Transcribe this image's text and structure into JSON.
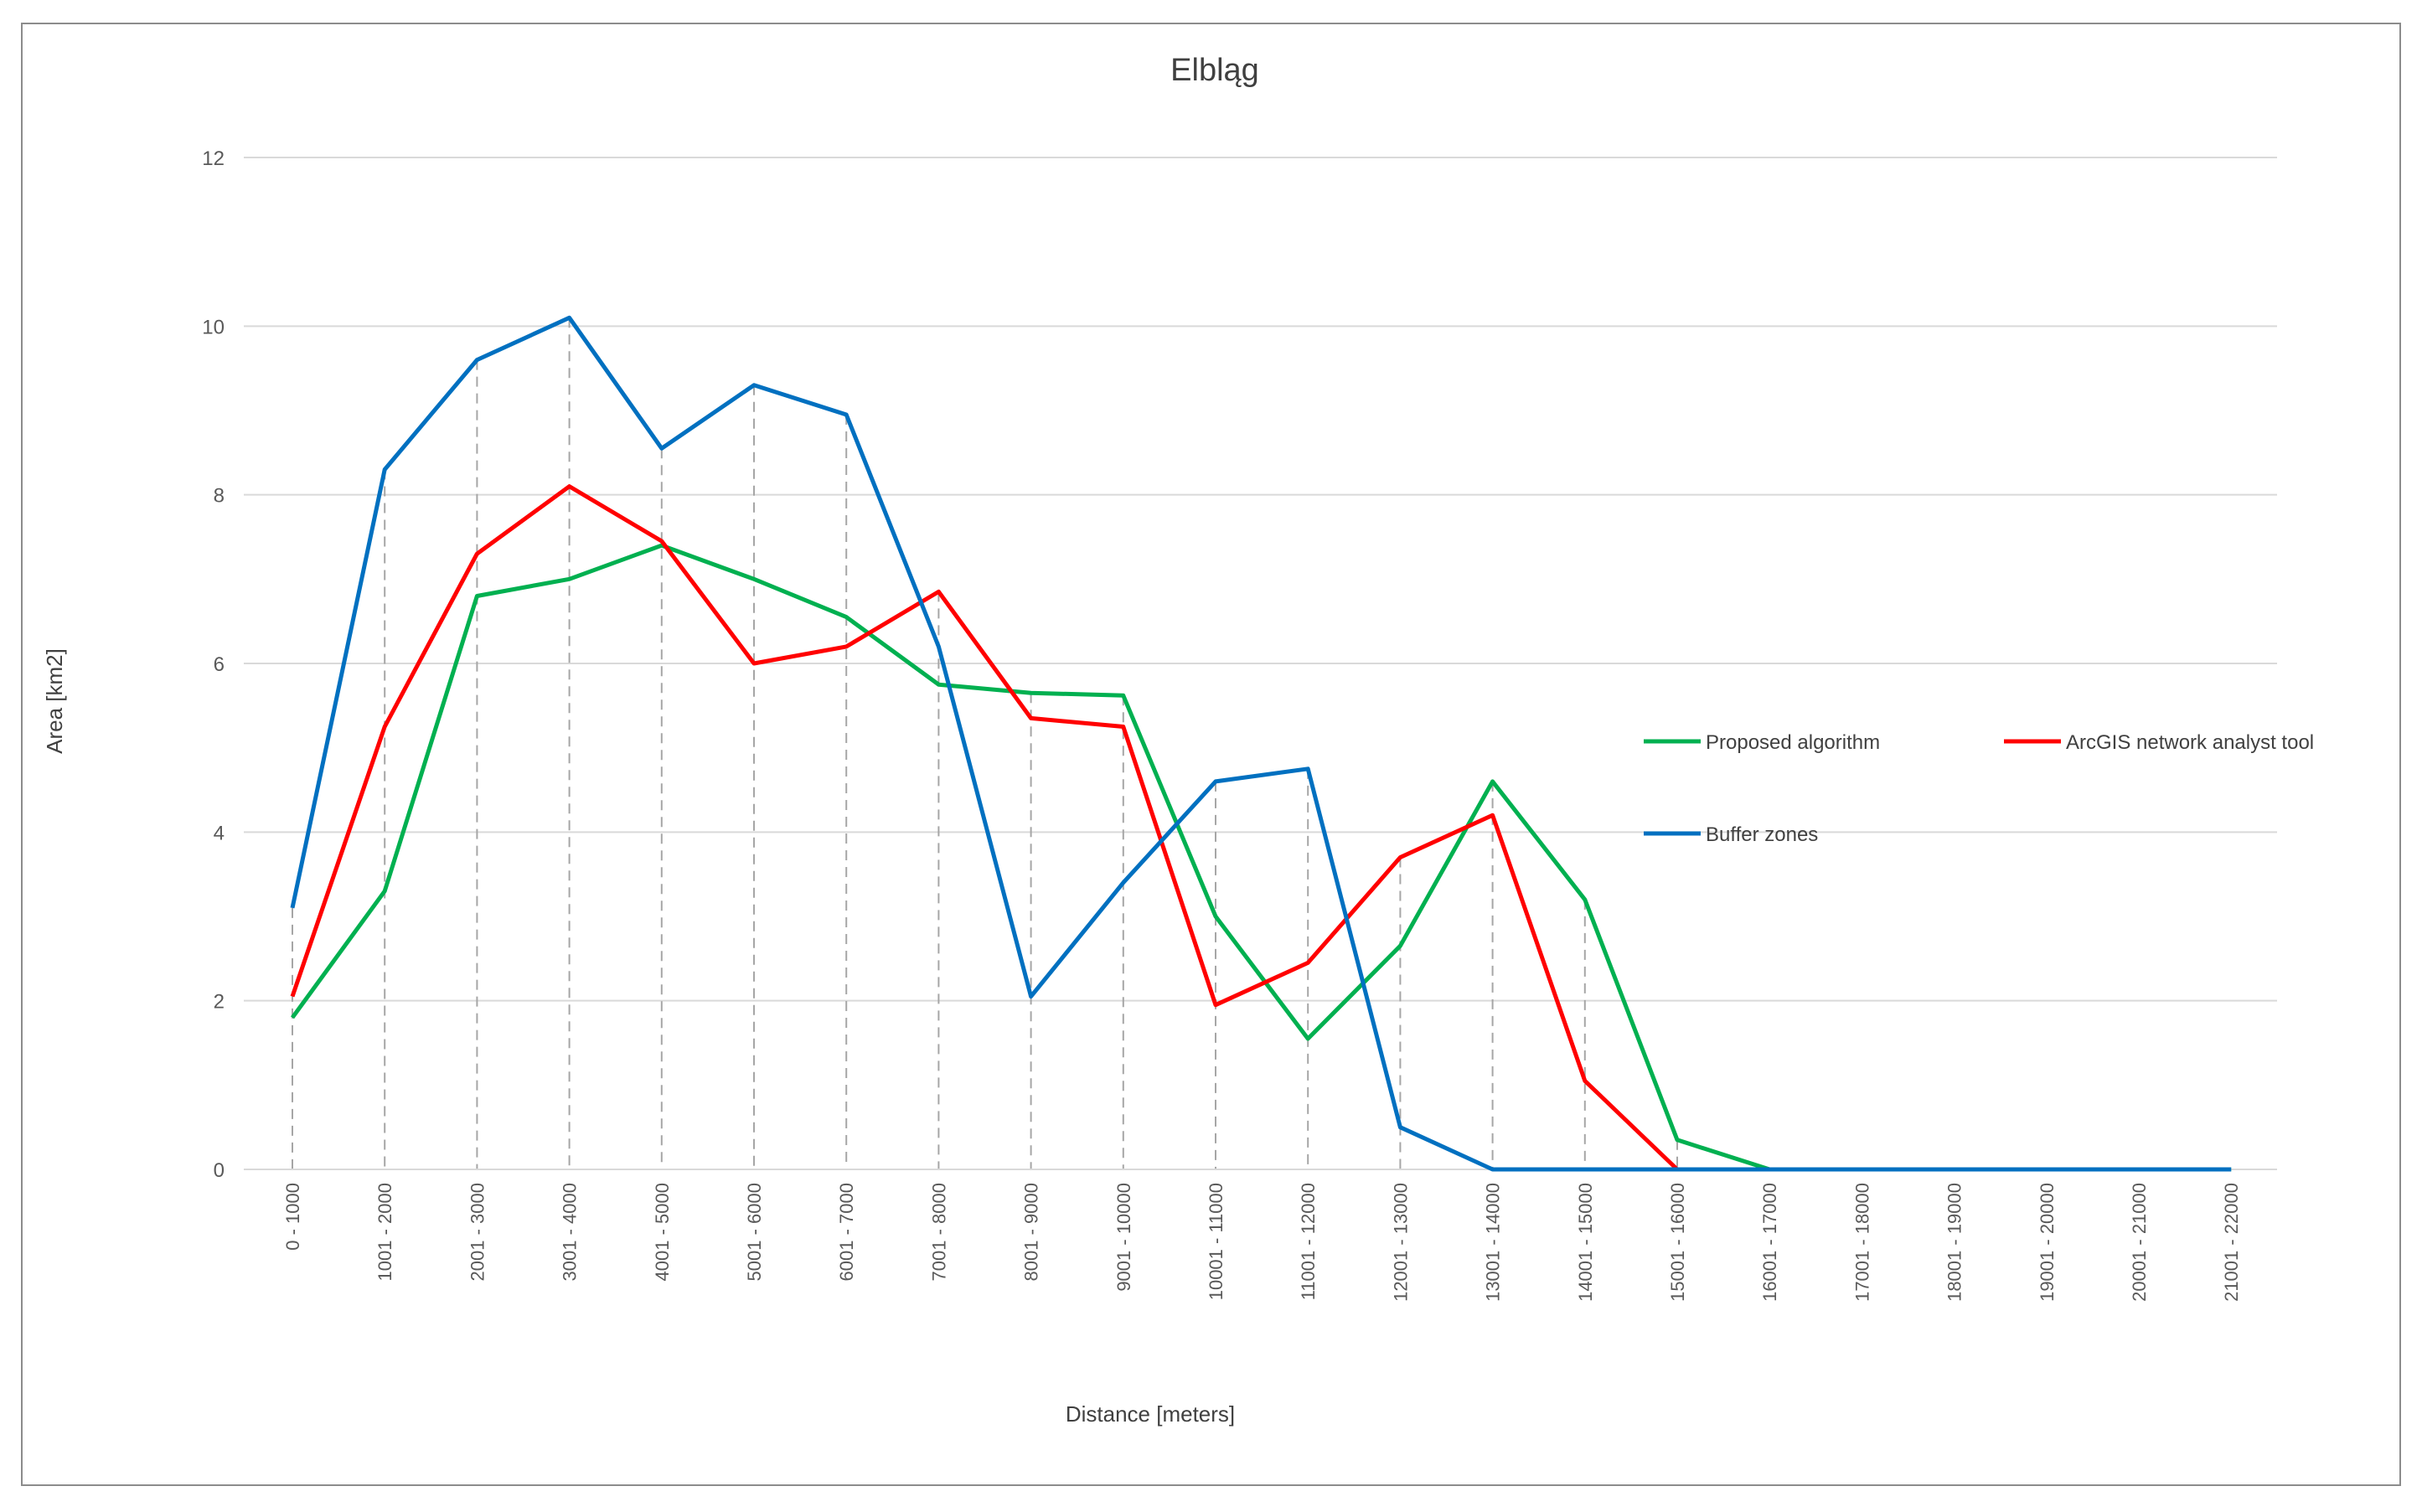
{
  "chart_data": {
    "type": "line",
    "title": "Elbląg",
    "xlabel": "Distance [meters]",
    "ylabel": "Area [km2]",
    "ylim": [
      0,
      12
    ],
    "yticks": [
      0,
      2,
      4,
      6,
      8,
      10,
      12
    ],
    "grid": true,
    "drop_lines": true,
    "legend": "right",
    "categories": [
      "0 - 1000",
      "1001 - 2000",
      "2001 - 3000",
      "3001 - 4000",
      "4001 - 5000",
      "5001 - 6000",
      "6001 - 7000",
      "7001 - 8000",
      "8001 - 9000",
      "9001 - 10000",
      "10001 - 11000",
      "11001 - 12000",
      "12001 - 13000",
      "13001 - 14000",
      "14001 - 15000",
      "15001 - 16000",
      "16001 - 17000",
      "17001 - 18000",
      "18001 - 19000",
      "19001 - 20000",
      "20001 - 21000",
      "21001 - 22000"
    ],
    "series": [
      {
        "name": "Proposed algorithm",
        "color": "#00b050",
        "values": [
          1.8,
          3.3,
          6.8,
          7.0,
          7.4,
          7.0,
          6.55,
          5.75,
          5.65,
          5.62,
          3.0,
          1.55,
          2.65,
          4.6,
          3.2,
          0.35,
          0,
          0,
          0,
          0,
          0,
          0
        ]
      },
      {
        "name": "ArcGIS network analyst tool",
        "color": "#ff0000",
        "values": [
          2.05,
          5.25,
          7.3,
          8.1,
          7.45,
          6.0,
          6.2,
          6.85,
          5.35,
          5.25,
          1.95,
          2.45,
          3.7,
          4.2,
          1.05,
          0,
          null,
          null,
          null,
          null,
          null,
          null
        ]
      },
      {
        "name": "Buffer zones",
        "color": "#0070c0",
        "values": [
          3.1,
          8.3,
          9.6,
          10.1,
          8.55,
          9.3,
          8.95,
          6.2,
          2.05,
          3.4,
          4.6,
          4.75,
          0.5,
          0,
          0,
          0,
          0,
          0,
          0,
          0,
          0,
          0
        ]
      }
    ]
  }
}
